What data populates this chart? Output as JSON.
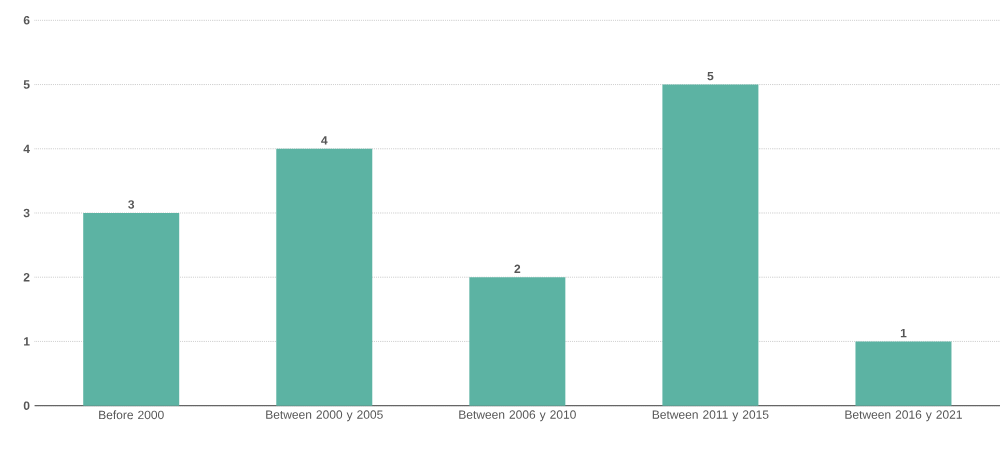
{
  "chart_data": {
    "type": "bar",
    "categories": [
      "Before 2000",
      "Between 2000 y 2005",
      "Between 2006 y 2010",
      "Between 2011 y 2015",
      "Between 2016 y 2021"
    ],
    "values": [
      3,
      4,
      2,
      5,
      1
    ],
    "color": "#5cb3a3",
    "ylim": [
      0,
      6
    ],
    "yticks": [
      0,
      1,
      2,
      3,
      4,
      5,
      6
    ],
    "grid": "y",
    "data_labels": true
  }
}
